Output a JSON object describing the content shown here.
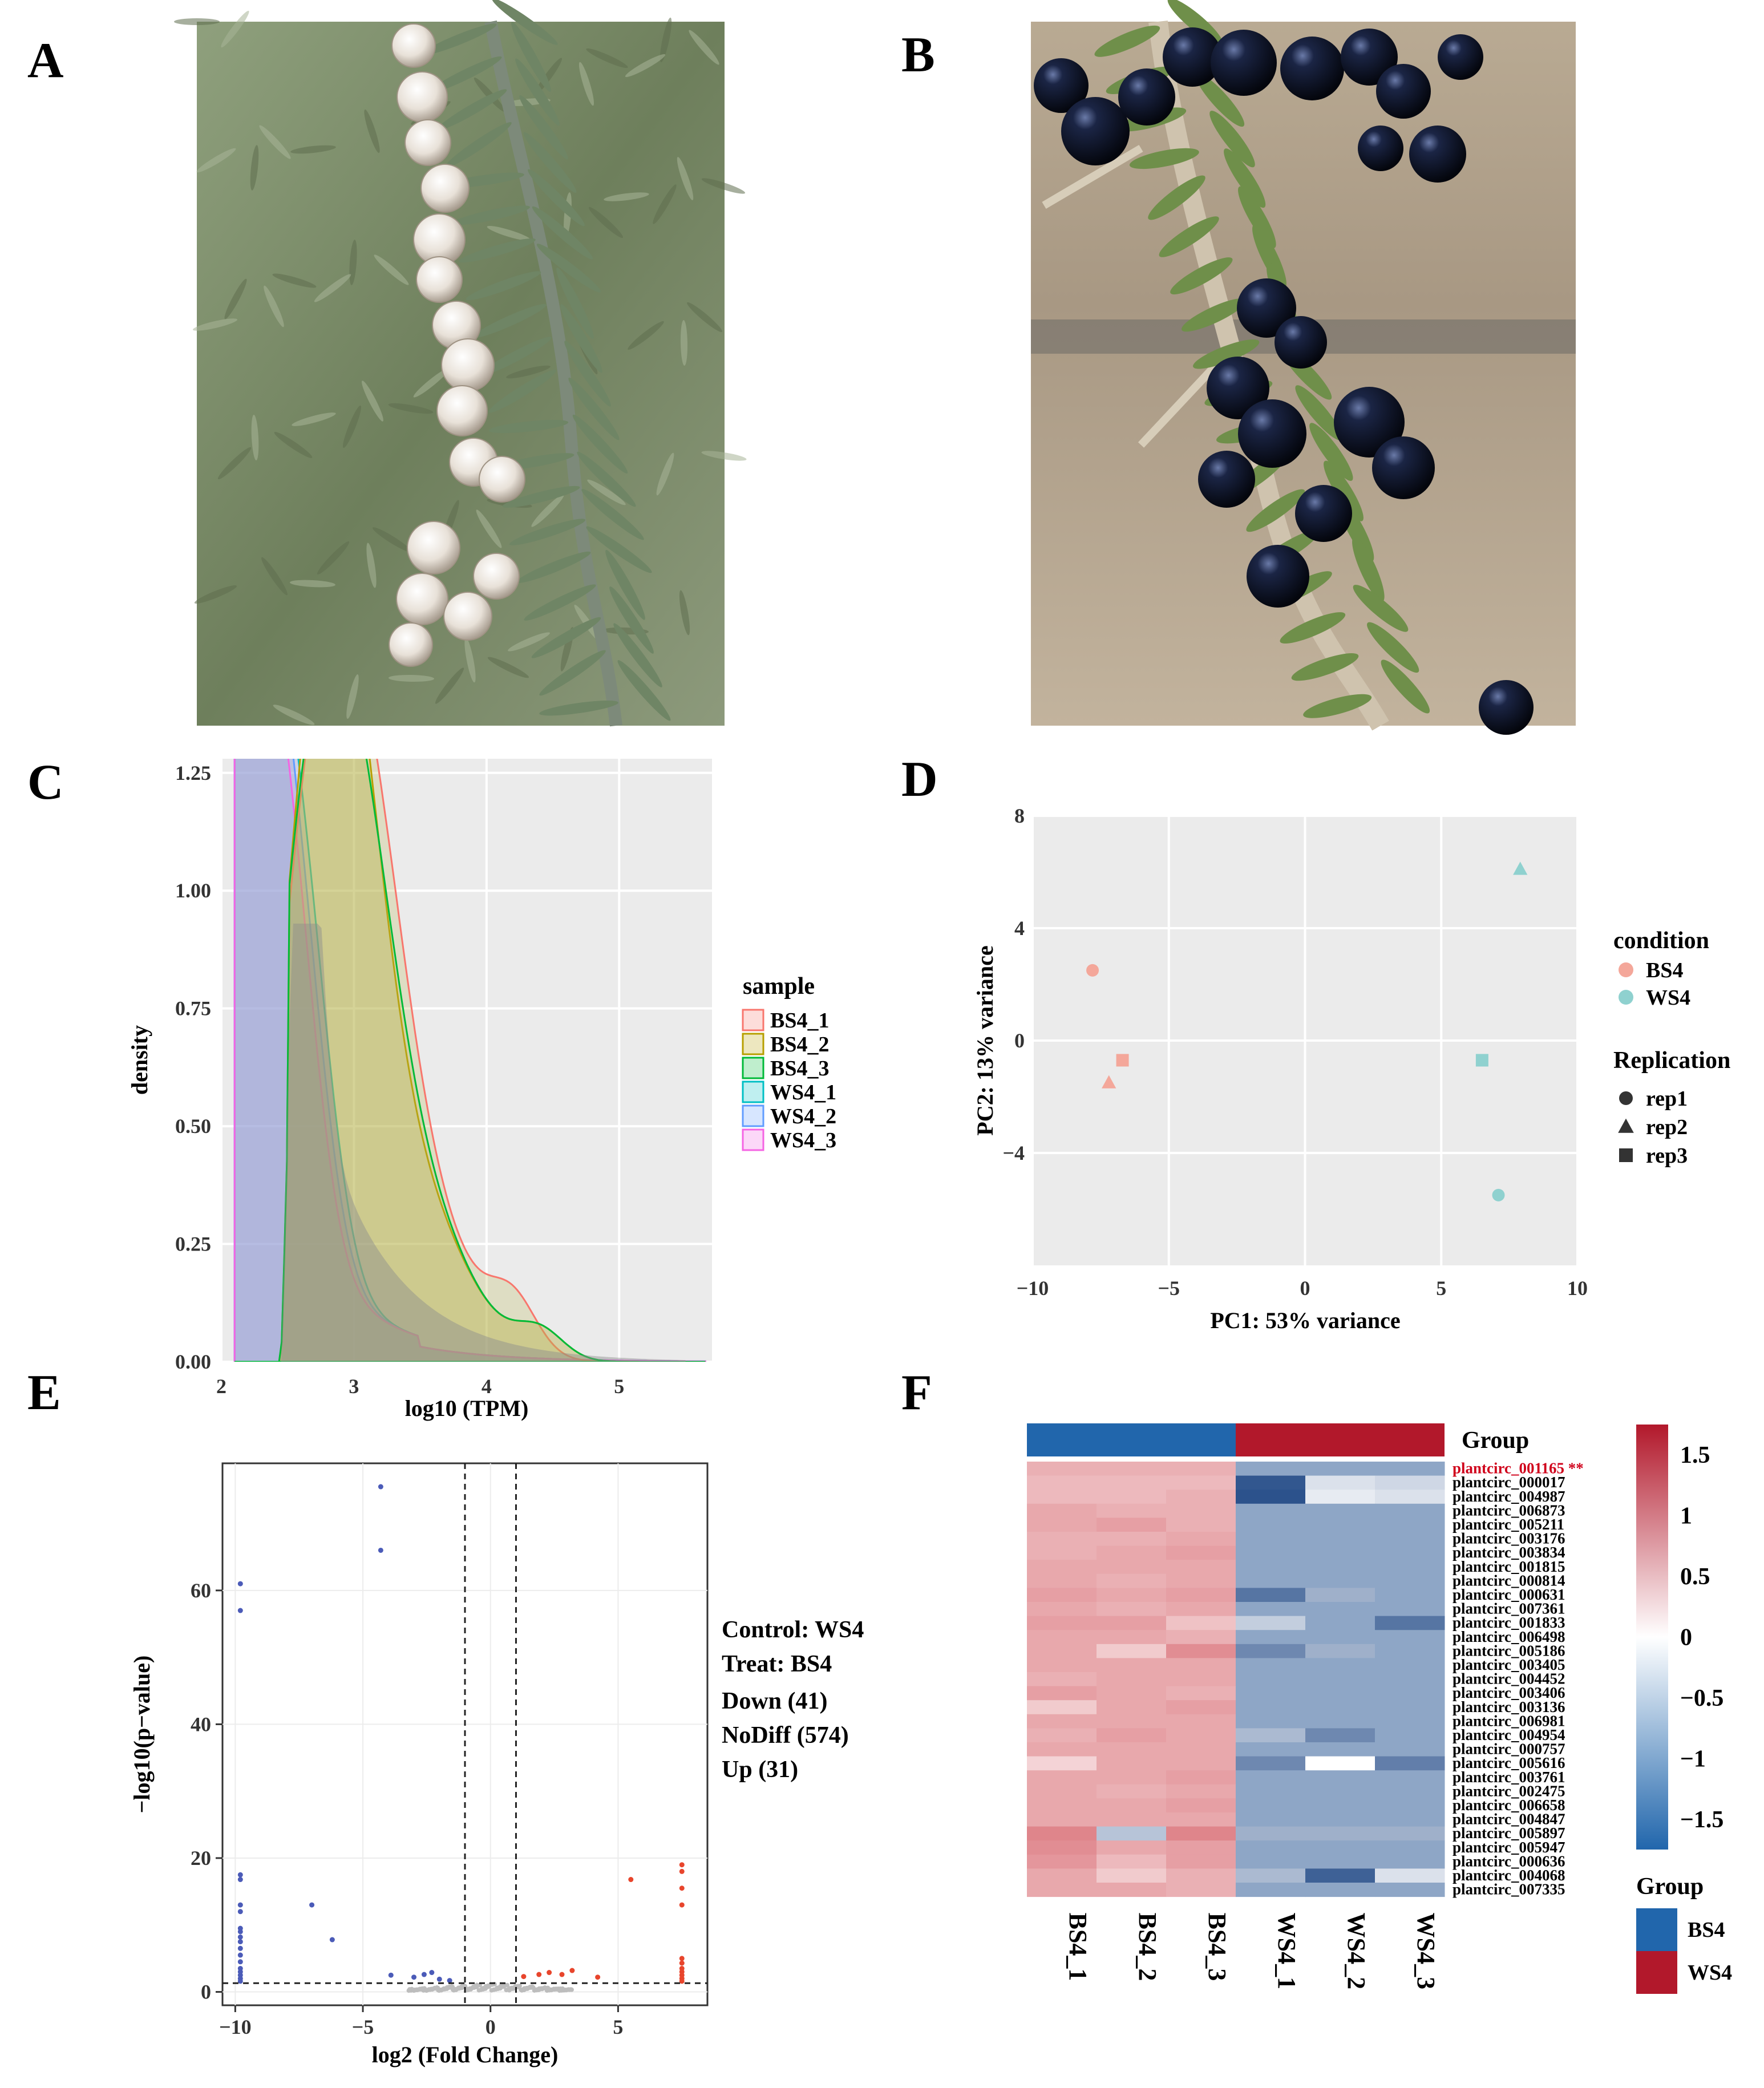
{
  "panels": {
    "A": "A",
    "B": "B",
    "C": "C",
    "D": "D",
    "E": "E",
    "F": "F"
  },
  "colors": {
    "panel_bg": "#ebebeb",
    "grid": "#ffffff",
    "BS4_1": "#f8766d",
    "BS4_2": "#b79f00",
    "BS4_3": "#00ba38",
    "WS4_1": "#00bfc4",
    "WS4_2": "#619cff",
    "WS4_3": "#f564e3",
    "BS4": "#f4a79a",
    "WS4": "#8fd1cf",
    "down": "#4b5bb8",
    "up": "#e8452c",
    "nodiff": "#bdbdbd",
    "heat_high": "#b2182b",
    "heat_mid": "#ffffff",
    "heat_low": "#2166ac",
    "group_BS4": "#2166ac",
    "group_WS4": "#b2182b",
    "highlight": "#d0021b"
  },
  "photos": {
    "A": {
      "subject": "white berries",
      "icon": "photo-white-berries"
    },
    "B": {
      "subject": "black berries",
      "icon": "photo-black-berries"
    }
  },
  "density": {
    "chart_data": {
      "type": "area",
      "xlabel": "log10 (TPM)",
      "ylabel": "density",
      "xlim": [
        2,
        5.7
      ],
      "ylim": [
        0,
        1.28
      ],
      "xticks": [
        "2",
        "3",
        "4",
        "5"
      ],
      "yticks": [
        "0.00",
        "0.25",
        "0.50",
        "0.75",
        "1.00",
        "1.25"
      ],
      "legend_title": "sample",
      "legend_position": "right",
      "series": [
        {
          "name": "BS4_1",
          "peaks": [
            [
              2.7,
              1.18
            ],
            [
              3.1,
              1.0
            ],
            [
              4.2,
              0.14
            ]
          ]
        },
        {
          "name": "BS4_2",
          "peaks": [
            [
              2.72,
              1.22
            ],
            [
              3.0,
              0.88
            ],
            [
              4.4,
              0.08
            ]
          ]
        },
        {
          "name": "BS4_3",
          "peaks": [
            [
              2.68,
              1.15
            ],
            [
              3.05,
              0.9
            ],
            [
              4.4,
              0.08
            ]
          ]
        },
        {
          "name": "WS4_1",
          "peaks": [
            [
              2.25,
              1.11
            ],
            [
              2.6,
              0.95
            ]
          ]
        },
        {
          "name": "WS4_2",
          "peaks": [
            [
              2.2,
              1.21
            ],
            [
              2.55,
              0.93
            ]
          ]
        },
        {
          "name": "WS4_3",
          "peaks": [
            [
              2.2,
              0.88
            ],
            [
              2.5,
              0.93
            ]
          ]
        }
      ]
    }
  },
  "pca": {
    "chart_data": {
      "type": "scatter",
      "xlabel": "PC1: 53% variance",
      "ylabel": "PC2: 13% variance",
      "xlim": [
        -10,
        10
      ],
      "ylim": [
        -8,
        8
      ],
      "xticks": [
        "−10",
        "−5",
        "0",
        "5",
        "10"
      ],
      "yticks": [
        "−4",
        "0",
        "4",
        "8"
      ],
      "legend_title_1": "condition",
      "legend_title_2": "Replication",
      "legend_position": "right",
      "conditions": [
        "BS4",
        "WS4"
      ],
      "replications": [
        "rep1",
        "rep2",
        "rep3"
      ],
      "points": [
        {
          "condition": "BS4",
          "rep": "rep1",
          "x": -7.8,
          "y": 2.5
        },
        {
          "condition": "BS4",
          "rep": "rep2",
          "x": -7.2,
          "y": -1.5
        },
        {
          "condition": "BS4",
          "rep": "rep3",
          "x": -6.7,
          "y": -0.7
        },
        {
          "condition": "WS4",
          "rep": "rep1",
          "x": 7.1,
          "y": -5.5
        },
        {
          "condition": "WS4",
          "rep": "rep2",
          "x": 7.9,
          "y": 6.1
        },
        {
          "condition": "WS4",
          "rep": "rep3",
          "x": 6.5,
          "y": -0.7
        }
      ]
    }
  },
  "volcano": {
    "chart_data": {
      "type": "scatter",
      "xlabel": "log2 (Fold Change)",
      "ylabel": "−log10(p−value)",
      "xlim": [
        -10.5,
        8.5
      ],
      "ylim": [
        -2,
        79
      ],
      "xticks": [
        "−10",
        "−5",
        "0",
        "5"
      ],
      "yticks": [
        "0",
        "20",
        "40",
        "60"
      ],
      "thresholds": {
        "fc": [
          -1,
          1
        ],
        "p": 1.3
      },
      "legend": [
        "Control: WS4",
        "Treat:  BS4",
        "Down (41)",
        "NoDiff (574)",
        "Up (31)"
      ],
      "down": [
        [
          -4.3,
          75.5
        ],
        [
          -4.3,
          66
        ],
        [
          -9.8,
          61
        ],
        [
          -9.8,
          57
        ],
        [
          -9.8,
          17.5
        ],
        [
          -9.8,
          16.8
        ],
        [
          -9.8,
          13
        ],
        [
          -9.8,
          12
        ],
        [
          -9.8,
          9.5
        ],
        [
          -9.8,
          9
        ],
        [
          -9.8,
          8.2
        ],
        [
          -9.8,
          7.5
        ],
        [
          -9.8,
          6.5
        ],
        [
          -9.8,
          5.5
        ],
        [
          -9.8,
          4.5
        ],
        [
          -9.8,
          3.5
        ],
        [
          -9.8,
          3
        ],
        [
          -9.8,
          2.5
        ],
        [
          -9.8,
          2
        ],
        [
          -9.8,
          1.6
        ],
        [
          -7.0,
          13
        ],
        [
          -6.2,
          7.8
        ],
        [
          -3.9,
          2.5
        ],
        [
          -3.0,
          2.2
        ],
        [
          -2.6,
          2.6
        ],
        [
          -2.3,
          2.9
        ],
        [
          -2.0,
          1.9
        ],
        [
          -1.6,
          1.7
        ]
      ],
      "up": [
        [
          7.5,
          19
        ],
        [
          7.5,
          18
        ],
        [
          7.5,
          15.5
        ],
        [
          7.5,
          13
        ],
        [
          7.5,
          5
        ],
        [
          7.5,
          4.3
        ],
        [
          7.5,
          3.5
        ],
        [
          7.5,
          3
        ],
        [
          7.5,
          2.5
        ],
        [
          7.5,
          2
        ],
        [
          7.5,
          1.6
        ],
        [
          5.5,
          16.8
        ],
        [
          1.3,
          2.3
        ],
        [
          1.9,
          2.6
        ],
        [
          2.3,
          2.9
        ],
        [
          2.8,
          2.6
        ],
        [
          3.2,
          3.2
        ],
        [
          4.2,
          2.2
        ]
      ]
    }
  },
  "heatmap": {
    "chart_data": {
      "type": "heatmap",
      "columns": [
        "BS4_1",
        "BS4_2",
        "BS4_3",
        "WS4_1",
        "WS4_2",
        "WS4_3"
      ],
      "group_label": "Group",
      "groups": [
        "BS4",
        "BS4",
        "BS4",
        "WS4",
        "WS4",
        "WS4"
      ],
      "scale_ticks": [
        "1.5",
        "1",
        "0.5",
        "0",
        "−0.5",
        "−1",
        "−1.5"
      ],
      "scale_range": [
        -1.75,
        1.75
      ],
      "highlight_row": "plantcirc_001165 **",
      "rows": [
        {
          "name": "plantcirc_001165 **",
          "v": [
            0.9,
            0.9,
            0.9,
            -1.0,
            -1.0,
            -1.0
          ]
        },
        {
          "name": "plantcirc_000017",
          "v": [
            0.8,
            0.8,
            0.8,
            -1.7,
            -0.3,
            -0.4
          ]
        },
        {
          "name": "plantcirc_004987",
          "v": [
            0.8,
            0.8,
            0.9,
            -1.85,
            -0.2,
            -0.3
          ]
        },
        {
          "name": "plantcirc_006873",
          "v": [
            1.0,
            0.9,
            0.9,
            -1.0,
            -1.0,
            -1.0
          ]
        },
        {
          "name": "plantcirc_005211",
          "v": [
            1.0,
            1.1,
            0.9,
            -1.0,
            -1.0,
            -1.0
          ]
        },
        {
          "name": "plantcirc_003176",
          "v": [
            0.9,
            0.9,
            1.0,
            -1.0,
            -1.0,
            -1.0
          ]
        },
        {
          "name": "plantcirc_003834",
          "v": [
            0.9,
            1.0,
            1.1,
            -1.0,
            -1.0,
            -1.0
          ]
        },
        {
          "name": "plantcirc_001815",
          "v": [
            1.0,
            1.0,
            1.0,
            -1.0,
            -1.0,
            -1.0
          ]
        },
        {
          "name": "plantcirc_000814",
          "v": [
            1.0,
            0.9,
            1.0,
            -1.0,
            -1.0,
            -1.0
          ]
        },
        {
          "name": "plantcirc_000631",
          "v": [
            1.1,
            1.0,
            1.1,
            -1.4,
            -0.8,
            -0.9
          ]
        },
        {
          "name": "plantcirc_007361",
          "v": [
            1.0,
            0.9,
            1.0,
            -1.0,
            -1.0,
            -1.0
          ]
        },
        {
          "name": "plantcirc_001833",
          "v": [
            1.1,
            1.1,
            0.7,
            -0.5,
            -1.1,
            -1.4
          ]
        },
        {
          "name": "plantcirc_006498",
          "v": [
            1.0,
            1.0,
            0.9,
            -1.0,
            -1.0,
            -1.0
          ]
        },
        {
          "name": "plantcirc_005186",
          "v": [
            1.0,
            0.6,
            1.3,
            -1.2,
            -0.8,
            -1.0
          ]
        },
        {
          "name": "plantcirc_003405",
          "v": [
            1.0,
            1.0,
            1.0,
            -1.0,
            -1.0,
            -1.0
          ]
        },
        {
          "name": "plantcirc_004452",
          "v": [
            0.9,
            1.0,
            1.0,
            -1.0,
            -1.0,
            -1.0
          ]
        },
        {
          "name": "plantcirc_003406",
          "v": [
            1.1,
            1.0,
            0.9,
            -1.0,
            -1.0,
            -1.0
          ]
        },
        {
          "name": "plantcirc_003136",
          "v": [
            0.6,
            1.0,
            1.1,
            -1.0,
            -1.0,
            -1.0
          ]
        },
        {
          "name": "plantcirc_006981",
          "v": [
            1.0,
            1.0,
            1.0,
            -1.0,
            -1.0,
            -1.0
          ]
        },
        {
          "name": "plantcirc_004954",
          "v": [
            0.9,
            1.1,
            1.0,
            -0.7,
            -1.2,
            -0.9
          ]
        },
        {
          "name": "plantcirc_000757",
          "v": [
            1.0,
            1.0,
            1.0,
            -1.0,
            -1.0,
            -1.0
          ]
        },
        {
          "name": "plantcirc_005616",
          "v": [
            0.5,
            1.0,
            1.0,
            -1.2,
            0.0,
            -1.3
          ]
        },
        {
          "name": "plantcirc_003761",
          "v": [
            1.0,
            1.0,
            1.1,
            -1.0,
            -1.0,
            -1.0
          ]
        },
        {
          "name": "plantcirc_002475",
          "v": [
            1.0,
            0.9,
            1.0,
            -1.0,
            -1.0,
            -1.0
          ]
        },
        {
          "name": "plantcirc_006658",
          "v": [
            1.0,
            1.0,
            1.1,
            -1.0,
            -1.0,
            -1.0
          ]
        },
        {
          "name": "plantcirc_004847",
          "v": [
            1.0,
            1.0,
            1.0,
            -1.0,
            -1.0,
            -1.0
          ]
        },
        {
          "name": "plantcirc_005897",
          "v": [
            1.4,
            -0.6,
            1.4,
            -0.8,
            -0.8,
            -0.8
          ]
        },
        {
          "name": "plantcirc_005947",
          "v": [
            1.3,
            1.0,
            1.1,
            -1.0,
            -1.0,
            -1.0
          ]
        },
        {
          "name": "plantcirc_000636",
          "v": [
            1.2,
            0.8,
            1.1,
            -1.0,
            -1.0,
            -1.0
          ]
        },
        {
          "name": "plantcirc_004068",
          "v": [
            1.0,
            0.6,
            0.9,
            -0.7,
            -1.6,
            -0.3
          ]
        },
        {
          "name": "plantcirc_007335",
          "v": [
            1.0,
            1.0,
            0.9,
            -1.0,
            -1.0,
            -1.0
          ]
        }
      ]
    }
  }
}
